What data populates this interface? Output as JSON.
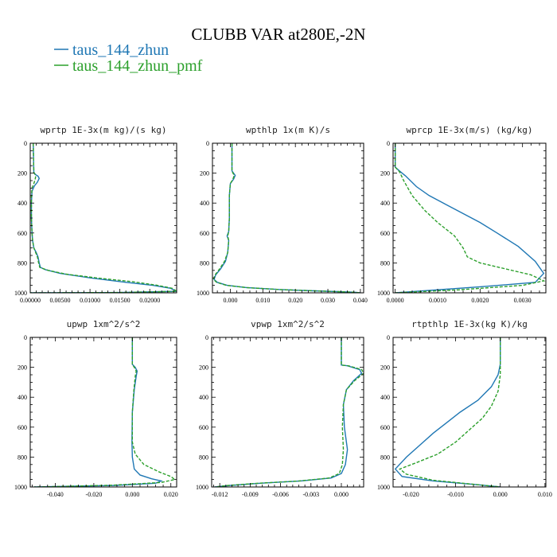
{
  "figure": {
    "title": "CLUBB VAR at280E,-2N",
    "legend": [
      {
        "name": "taus_144_zhun",
        "color": "#1f77b4",
        "dash": "solid"
      },
      {
        "name": "taus_144_zhun_pmf",
        "color": "#2ca02c",
        "dash": "dashed"
      }
    ]
  },
  "chart_data": [
    {
      "type": "line",
      "title": "wprtp  1E-3x(m kg)/(s kg)",
      "xlim": [
        0,
        0.0245
      ],
      "ylim": [
        1000,
        0
      ],
      "xticks": [
        0,
        0.005,
        0.01,
        0.015,
        0.02
      ],
      "xtick_labels": [
        "0.00000",
        "0.00500",
        "0.01000",
        "0.01500",
        "0.02000"
      ],
      "yticks": [
        0,
        200,
        400,
        600,
        800,
        1000
      ],
      "series": [
        {
          "name": "taus_144_zhun",
          "x": [
            0.0005,
            0.0006,
            0.0009,
            0.0013,
            0.0015,
            0.0012,
            0.0007,
            0.0003,
            0.0002,
            0.0002,
            0.0003,
            0.0004,
            0.0006,
            0.001,
            0.0013,
            0.0015,
            0.0017,
            0.0025,
            0.005,
            0.01,
            0.016,
            0.0205,
            0.0235,
            0.0245,
            0.015,
            0.0
          ],
          "y": [
            0,
            195,
            210,
            220,
            235,
            260,
            285,
            320,
            400,
            500,
            600,
            650,
            700,
            730,
            760,
            800,
            830,
            845,
            870,
            900,
            930,
            950,
            970,
            990,
            998,
            1000
          ]
        },
        {
          "name": "taus_144_zhun_pmf",
          "x": [
            0.0005,
            0.0006,
            0.0008,
            0.0009,
            0.0008,
            0.0006,
            0.0003,
            0.0002,
            0.0002,
            0.0003,
            0.0004,
            0.0006,
            0.0009,
            0.0012,
            0.0014,
            0.0016,
            0.003,
            0.006,
            0.011,
            0.017,
            0.021,
            0.0238,
            0.0245,
            0.015,
            0.0
          ],
          "y": [
            0,
            195,
            210,
            225,
            245,
            270,
            300,
            360,
            500,
            600,
            650,
            700,
            730,
            760,
            800,
            830,
            850,
            875,
            900,
            925,
            948,
            970,
            990,
            998,
            1000
          ]
        }
      ]
    },
    {
      "type": "line",
      "title": "wpthlp  1x(m K)/s",
      "xlim": [
        -0.0055,
        0.041
      ],
      "ylim": [
        1000,
        0
      ],
      "xticks": [
        0,
        0.01,
        0.02,
        0.03,
        0.04
      ],
      "xtick_labels": [
        "0.000",
        "0.010",
        "0.020",
        "0.030",
        "0.040"
      ],
      "yticks": [
        0,
        200,
        400,
        600,
        800,
        1000
      ],
      "series": [
        {
          "name": "taus_144_zhun",
          "x": [
            0.0005,
            0.0005,
            0.001,
            0.0015,
            0.001,
            0.0,
            -0.0003,
            -0.0003,
            -0.0005,
            -0.001,
            -0.0005,
            -0.0008,
            -0.0015,
            -0.003,
            -0.0045,
            -0.005,
            -0.004,
            -0.001,
            0.005,
            0.015,
            0.025,
            0.033,
            0.038,
            0.04
          ],
          "y": [
            0,
            185,
            200,
            215,
            240,
            270,
            350,
            500,
            590,
            620,
            650,
            730,
            790,
            840,
            880,
            910,
            930,
            950,
            965,
            978,
            986,
            992,
            996,
            1000
          ]
        },
        {
          "name": "taus_144_zhun_pmf",
          "x": [
            0.0005,
            0.0005,
            0.0008,
            0.0012,
            0.0008,
            0.0,
            -0.0003,
            -0.0003,
            -0.0005,
            -0.0008,
            -0.0005,
            -0.0008,
            -0.0018,
            -0.0033,
            -0.0047,
            -0.0052,
            -0.0042,
            -0.0012,
            0.005,
            0.015,
            0.025,
            0.033,
            0.038,
            0.04
          ],
          "y": [
            0,
            185,
            200,
            215,
            240,
            270,
            350,
            500,
            590,
            620,
            650,
            730,
            790,
            840,
            880,
            910,
            930,
            950,
            965,
            978,
            986,
            992,
            996,
            1000
          ]
        }
      ]
    },
    {
      "type": "line",
      "title": "wprcp  1E-3x(m/s) (kg/kg)",
      "xlim": [
        -5e-05,
        0.00355
      ],
      "ylim": [
        1000,
        0
      ],
      "xticks": [
        0,
        0.001,
        0.002,
        0.003
      ],
      "xtick_labels": [
        "0.0000",
        "0.0010",
        "0.0020",
        "0.0030"
      ],
      "yticks": [
        0,
        200,
        400,
        600,
        800,
        1000
      ],
      "series": [
        {
          "name": "taus_144_zhun",
          "x": [
            0.0,
            0.0,
            0.0001,
            0.00025,
            0.0005,
            0.0008,
            0.0012,
            0.0016,
            0.002,
            0.0024,
            0.0029,
            0.0033,
            0.0035,
            0.0033,
            0.002,
            0.0005,
            0.0
          ],
          "y": [
            0,
            160,
            185,
            220,
            290,
            350,
            410,
            470,
            530,
            600,
            690,
            790,
            870,
            930,
            960,
            990,
            1000
          ]
        },
        {
          "name": "taus_144_zhun_pmf",
          "x": [
            0.0,
            0.0,
            0.0001,
            0.0002,
            0.0004,
            0.0007,
            0.001,
            0.0014,
            0.0016,
            0.0017,
            0.002,
            0.0026,
            0.0032,
            0.0035,
            0.003,
            0.0015,
            0.0
          ],
          "y": [
            0,
            160,
            190,
            250,
            350,
            450,
            530,
            620,
            700,
            760,
            800,
            840,
            880,
            920,
            950,
            980,
            1000
          ]
        }
      ]
    },
    {
      "type": "line",
      "title": "upwp  1xm^2/s^2",
      "xlim": [
        -0.053,
        0.023
      ],
      "ylim": [
        1000,
        0
      ],
      "xticks": [
        -0.04,
        -0.02,
        0.0,
        0.02
      ],
      "xtick_labels": [
        "-0.040",
        "-0.020",
        "0.000",
        "0.020"
      ],
      "yticks": [
        0,
        200,
        400,
        600,
        800,
        1000
      ],
      "series": [
        {
          "name": "taus_144_zhun",
          "x": [
            0.0,
            0.0,
            0.0015,
            0.0025,
            0.002,
            0.001,
            0.0,
            -0.0002,
            0.0,
            0.001,
            0.004,
            0.01,
            0.015,
            0.012,
            -0.01,
            -0.035,
            -0.051
          ],
          "y": [
            0,
            180,
            200,
            225,
            260,
            350,
            500,
            700,
            800,
            880,
            920,
            945,
            960,
            975,
            990,
            996,
            1000
          ]
        },
        {
          "name": "taus_144_zhun_pmf",
          "x": [
            0.0,
            0.0,
            0.001,
            0.002,
            0.0015,
            0.0008,
            0.0,
            0.0,
            0.0015,
            0.006,
            0.014,
            0.02,
            0.022,
            0.015,
            -0.01,
            -0.035,
            -0.051
          ],
          "y": [
            0,
            180,
            200,
            225,
            260,
            350,
            500,
            700,
            780,
            850,
            900,
            930,
            950,
            970,
            988,
            996,
            1000
          ]
        }
      ]
    },
    {
      "type": "line",
      "title": "vpwp  1xm^2/s^2",
      "xlim": [
        -0.0128,
        0.0022
      ],
      "ylim": [
        1000,
        0
      ],
      "xticks": [
        -0.012,
        -0.009,
        -0.006,
        -0.003,
        0.0
      ],
      "xtick_labels": [
        "-0.012",
        "-0.009",
        "-0.006",
        "-0.003",
        "0.000"
      ],
      "yticks": [
        0,
        200,
        400,
        600,
        800,
        1000
      ],
      "series": [
        {
          "name": "taus_144_zhun",
          "x": [
            0.0,
            0.0,
            0.0,
            0.0006,
            0.0018,
            0.002,
            0.0012,
            0.0005,
            0.0002,
            0.0003,
            0.0006,
            0.0004,
            0.0,
            -0.001,
            -0.004,
            -0.008,
            -0.011,
            -0.0125
          ],
          "y": [
            0,
            170,
            185,
            190,
            215,
            240,
            290,
            350,
            450,
            600,
            750,
            850,
            910,
            940,
            960,
            975,
            990,
            1000
          ]
        },
        {
          "name": "taus_144_zhun_pmf",
          "x": [
            0.0,
            0.0,
            0.0,
            0.0007,
            0.002,
            0.0022,
            0.0013,
            0.0005,
            0.0002,
            0.0001,
            0.0002,
            0.0001,
            -0.0002,
            -0.0012,
            -0.0042,
            -0.0082,
            -0.0112,
            -0.0125
          ],
          "y": [
            0,
            170,
            185,
            190,
            215,
            240,
            290,
            350,
            450,
            600,
            750,
            850,
            910,
            940,
            960,
            975,
            990,
            1000
          ]
        }
      ]
    },
    {
      "type": "line",
      "title": "rtpthlp  1E-3x(kg K)/kg",
      "xlim": [
        -0.024,
        0.0102
      ],
      "ylim": [
        1000,
        0
      ],
      "xticks": [
        -0.02,
        -0.01,
        0.0,
        0.01
      ],
      "xtick_labels": [
        "-0.020",
        "-0.010",
        "0.000",
        "0.010"
      ],
      "yticks": [
        0,
        200,
        400,
        600,
        800,
        1000
      ],
      "series": [
        {
          "name": "taus_144_zhun",
          "x": [
            0.0,
            0.0,
            -0.0005,
            -0.002,
            -0.005,
            -0.009,
            -0.012,
            -0.015,
            -0.018,
            -0.021,
            -0.0235,
            -0.022,
            -0.015,
            -0.005,
            0.0
          ],
          "y": [
            0,
            180,
            250,
            330,
            420,
            500,
            570,
            640,
            720,
            800,
            880,
            930,
            960,
            985,
            1000
          ]
        },
        {
          "name": "taus_144_zhun_pmf",
          "x": [
            0.0,
            0.0,
            -0.0005,
            -0.002,
            -0.004,
            -0.007,
            -0.01,
            -0.014,
            -0.019,
            -0.0225,
            -0.021,
            -0.015,
            -0.005,
            0.0
          ],
          "y": [
            0,
            250,
            360,
            460,
            540,
            620,
            700,
            780,
            840,
            880,
            915,
            955,
            985,
            1000
          ]
        }
      ]
    }
  ]
}
